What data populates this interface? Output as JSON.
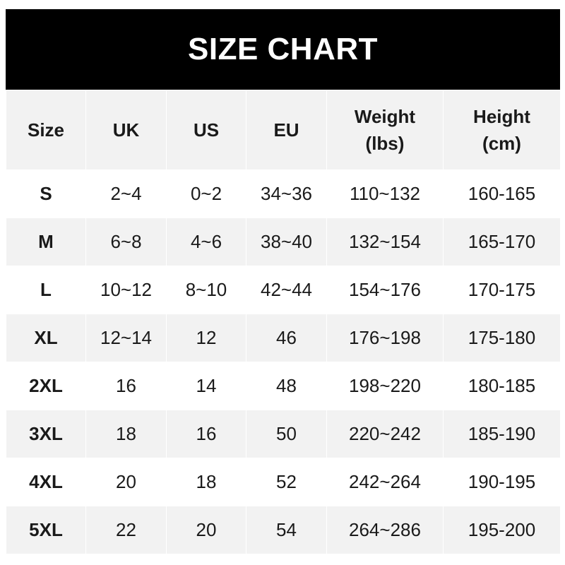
{
  "title": "SIZE CHART",
  "headers": [
    "Size",
    "UK",
    "US",
    "EU",
    "Weight\n(lbs)",
    "Height\n(cm)"
  ],
  "header_lines": [
    [
      "Size"
    ],
    [
      "UK"
    ],
    [
      "US"
    ],
    [
      "EU"
    ],
    [
      "Weight",
      "(lbs)"
    ],
    [
      "Height",
      "(cm)"
    ]
  ],
  "rows": [
    [
      "S",
      "2~4",
      "0~2",
      "34~36",
      "110~132",
      "160-165"
    ],
    [
      "M",
      "6~8",
      "4~6",
      "38~40",
      "132~154",
      "165-170"
    ],
    [
      "L",
      "10~12",
      "8~10",
      "42~44",
      "154~176",
      "170-175"
    ],
    [
      "XL",
      "12~14",
      "12",
      "46",
      "176~198",
      "175-180"
    ],
    [
      "2XL",
      "16",
      "14",
      "48",
      "198~220",
      "180-185"
    ],
    [
      "3XL",
      "18",
      "16",
      "50",
      "220~242",
      "185-190"
    ],
    [
      "4XL",
      "20",
      "18",
      "52",
      "242~264",
      "190-195"
    ],
    [
      "5XL",
      "22",
      "20",
      "54",
      "264~286",
      "195-200"
    ]
  ],
  "colors": {
    "title_bg": "#000000",
    "title_text": "#ffffff",
    "stripe": "#f2f2f2",
    "text": "#1a1a1a"
  }
}
